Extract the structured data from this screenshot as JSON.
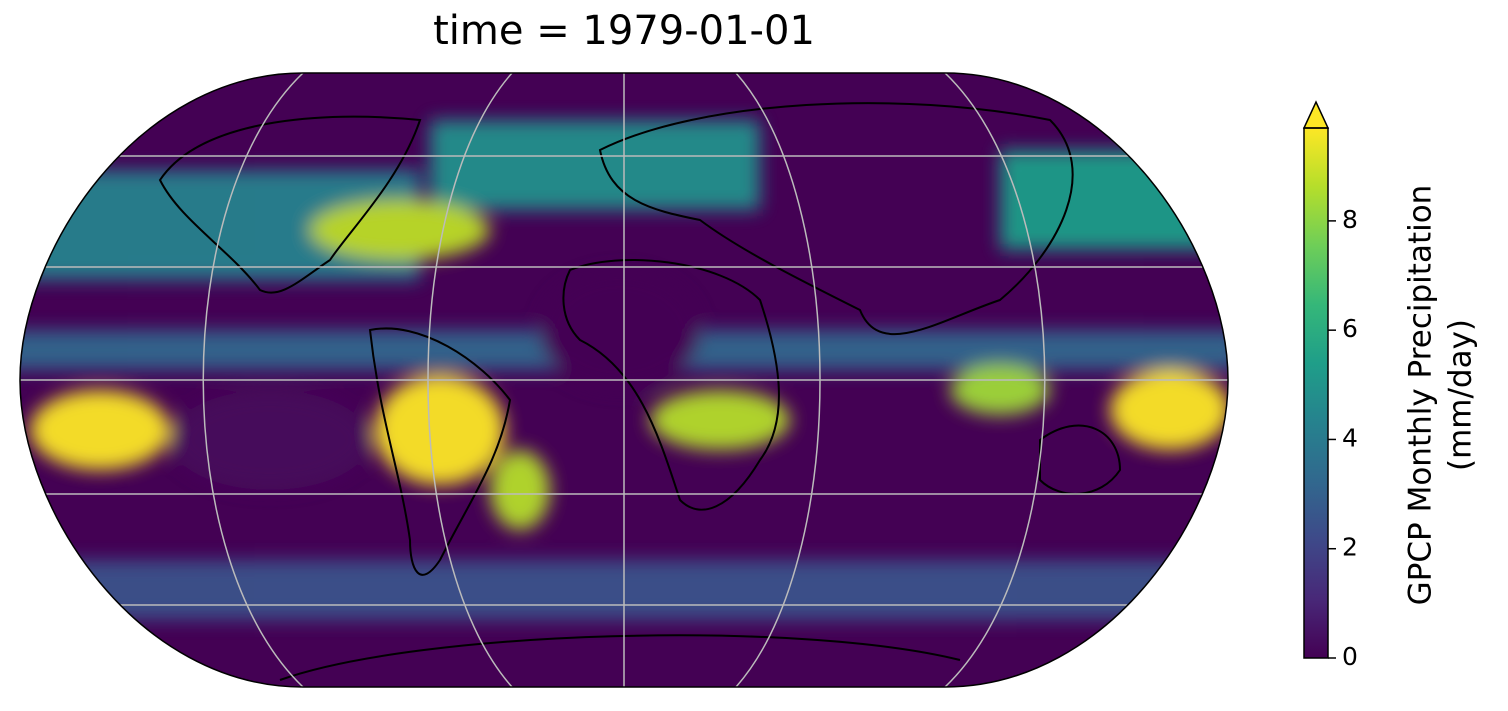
{
  "chart_data": {
    "type": "map",
    "title": "time = 1979-01-01",
    "colorbar": {
      "label": [
        "GPCP Monthly Precipitation",
        "(mm/day)"
      ],
      "lim": [
        0,
        9.7
      ],
      "ticks": [
        0,
        2,
        4,
        6,
        8
      ],
      "extend": "max",
      "colormap": "viridis"
    }
  }
}
